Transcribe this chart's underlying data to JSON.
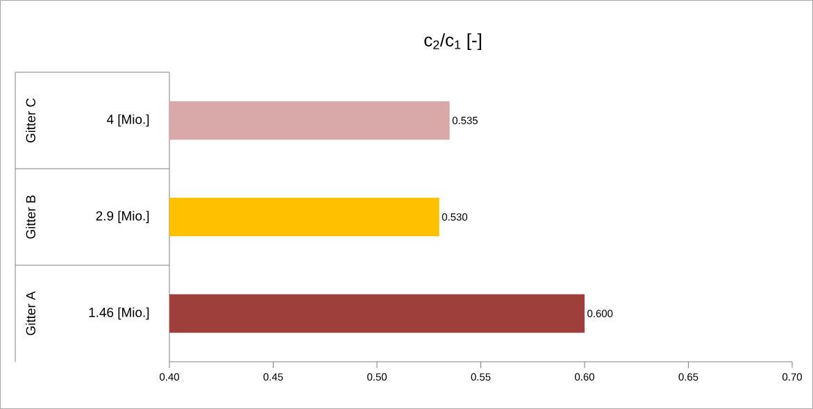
{
  "chart_data": {
    "type": "bar",
    "orientation": "horizontal",
    "title": "c$_{2}$/c$_{1}$ [-]",
    "categories": [
      "4 [Mio.]",
      "2.9 [Mio.]",
      "1.46 [Mio.]"
    ],
    "annotations": [
      "Gitter C",
      "Gitter B",
      "Gitter A"
    ],
    "values": [
      0.535,
      0.53,
      0.6
    ],
    "colors": [
      "#d9a9a9",
      "#ffc000",
      "#9e3f3c"
    ],
    "value_labels": [
      "0.535",
      "0.530",
      "0.600"
    ],
    "xlim": [
      0.4,
      0.7
    ],
    "xticks": [
      {
        "value": 0.4,
        "label": "0.40"
      },
      {
        "value": 0.45,
        "label": "0.45"
      },
      {
        "value": 0.5,
        "label": "0.50"
      },
      {
        "value": 0.55,
        "label": "0.55"
      },
      {
        "value": 0.6,
        "label": "0.60"
      },
      {
        "value": 0.65,
        "label": "0.65"
      },
      {
        "value": 0.7,
        "label": "0.70"
      }
    ],
    "grid": false
  }
}
